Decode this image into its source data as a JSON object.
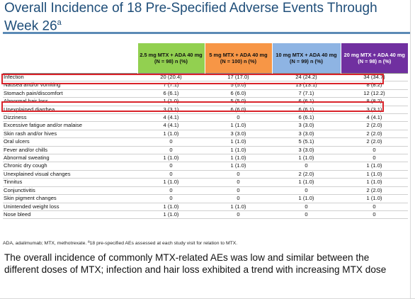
{
  "title": {
    "main": "Overall Incidence of 18 Pre-Specified Adverse Events Through Week 26",
    "sup": "a"
  },
  "table": {
    "headers": [
      "2.5 mg MTX + ADA 40 mg (N = 98) n (%)",
      "5 mg MTX + ADA 40 mg (N = 100) n (%)",
      "10 mg MTX + ADA 40 mg (N = 99) n (%)",
      "20 mg MTX + ADA 40 mg (N = 98) n (%)"
    ],
    "header_colors": [
      "#92d050",
      "#f79646",
      "#8eb4e3",
      "#7030a0"
    ],
    "rows": [
      {
        "label": "Infection",
        "values": [
          "20 (20.4)",
          "17 (17.0)",
          "24 (24.2)",
          "34 (34.7)"
        ],
        "highlight": true
      },
      {
        "label": "Nausea and/or vomiting",
        "values": [
          "7 (7.1)",
          "5 (5.0)",
          "13 (13.1)",
          "8 (8.2)"
        ]
      },
      {
        "label": "Stomach pain/discomfort",
        "values": [
          "6 (6.1)",
          "6 (6.0)",
          "7 (7.1)",
          "12 (12.2)"
        ]
      },
      {
        "label": "Abnormal hair loss",
        "values": [
          "1 (1.0)",
          "5 (5.0)",
          "6 (6.1)",
          "8 (8.2)"
        ],
        "highlight": true
      },
      {
        "label": "Unexplained diarrhea",
        "values": [
          "3 (3.1)",
          "6 (6.0)",
          "6 (6.1)",
          "3 (3.1)"
        ]
      },
      {
        "label": "Dizziness",
        "values": [
          "4 (4.1)",
          "0",
          "6 (6.1)",
          "4 (4.1)"
        ]
      },
      {
        "label": "Excessive fatigue and/or malaise",
        "values": [
          "4 (4.1)",
          "1 (1.0)",
          "3 (3.0)",
          "2 (2.0)"
        ]
      },
      {
        "label": "Skin rash and/or hives",
        "values": [
          "1 (1.0)",
          "3 (3.0)",
          "3 (3.0)",
          "2 (2.0)"
        ]
      },
      {
        "label": "Oral ulcers",
        "values": [
          "0",
          "1 (1.0)",
          "5 (5.1)",
          "2 (2.0)"
        ]
      },
      {
        "label": "Fever and/or chills",
        "values": [
          "0",
          "1 (1.0)",
          "3 (3.0)",
          "0"
        ]
      },
      {
        "label": "Abnormal sweating",
        "values": [
          "1 (1.0)",
          "1 (1.0)",
          "1 (1.0)",
          "0"
        ]
      },
      {
        "label": "Chronic dry cough",
        "values": [
          "0",
          "1 (1.0)",
          "0",
          "1 (1.0)"
        ]
      },
      {
        "label": "Unexplained visual changes",
        "values": [
          "0",
          "0",
          "2 (2.0)",
          "1 (1.0)"
        ]
      },
      {
        "label": "Tinnitus",
        "values": [
          "1 (1.0)",
          "0",
          "1 (1.0)",
          "1 (1.0)"
        ]
      },
      {
        "label": "Conjunctivitis",
        "values": [
          "0",
          "0",
          "0",
          "2 (2.0)"
        ]
      },
      {
        "label": "Skin pigment changes",
        "values": [
          "0",
          "0",
          "1 (1.0)",
          "1 (1.0)"
        ]
      },
      {
        "label": "Unintended weight loss",
        "values": [
          "1 (1.0)",
          "1 (1.0)",
          "0",
          "0"
        ]
      },
      {
        "label": "Nose bleed",
        "values": [
          "1 (1.0)",
          "0",
          "0",
          "0"
        ]
      }
    ]
  },
  "footnote": "ADA, adalimumab; MTX, methotrexate. ª18 pre-specified AEs assessed at each study visit for relation to MTX.",
  "summary": "The overall incidence of commonly MTX-related AEs was low and similar between the different doses of MTX; infection and hair loss exhibited a trend with increasing MTX dose",
  "colors": {
    "title": "#1f4e79",
    "highlight_border": "#d9232a"
  }
}
